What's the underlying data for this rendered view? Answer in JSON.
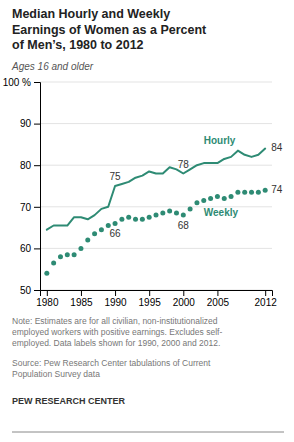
{
  "chart_data": {
    "type": "line",
    "title": "Median Hourly and Weekly\nEarnings of Women as a Percent\nof Men’s, 1980 to 2012",
    "subtitle": "Ages 16 and older",
    "note": "Note: Estimates are for all civilian, non-institutionalized\nemployed workers with positive earnings. Excludes self-\nemployed. Data labels shown for 1990, 2000 and 2012.",
    "source": "Source: Pew Research Center tabulations of Current\nPopulation Survey data",
    "credit": "PEW RESEARCH CENTER",
    "x": [
      1980,
      1981,
      1982,
      1983,
      1984,
      1985,
      1986,
      1987,
      1988,
      1989,
      1990,
      1991,
      1992,
      1993,
      1994,
      1995,
      1996,
      1997,
      1998,
      1999,
      2000,
      2001,
      2002,
      2003,
      2004,
      2005,
      2006,
      2007,
      2008,
      2009,
      2010,
      2011,
      2012
    ],
    "series": [
      {
        "name": "Hourly",
        "color": "#2e8b74",
        "line_style": "solid",
        "marker": "none",
        "values": [
          64.5,
          65.5,
          65.5,
          65.5,
          67.5,
          67.5,
          67.0,
          68.0,
          69.5,
          70.0,
          75.0,
          75.5,
          76.0,
          77.0,
          77.5,
          78.5,
          78.0,
          78.0,
          79.5,
          79.0,
          78.0,
          79.0,
          80.0,
          80.5,
          80.5,
          80.5,
          81.5,
          82.0,
          83.5,
          82.5,
          82.0,
          82.5,
          84.0
        ],
        "value_labels": [
          null,
          null,
          null,
          null,
          null,
          null,
          null,
          null,
          null,
          null,
          "75",
          null,
          null,
          null,
          null,
          null,
          null,
          null,
          null,
          null,
          "78",
          null,
          null,
          null,
          null,
          null,
          null,
          null,
          null,
          null,
          null,
          null,
          "84"
        ]
      },
      {
        "name": "Weekly",
        "color": "#2e8b74",
        "line_style": "none",
        "marker": "circle",
        "values": [
          54.0,
          56.5,
          58.0,
          58.5,
          58.5,
          60.0,
          62.0,
          63.5,
          64.5,
          65.5,
          66.0,
          67.0,
          67.5,
          67.0,
          67.0,
          67.5,
          68.0,
          68.5,
          69.0,
          68.5,
          68.0,
          69.5,
          71.0,
          71.5,
          72.0,
          72.5,
          72.0,
          72.5,
          73.5,
          73.5,
          73.5,
          73.5,
          74.0
        ],
        "value_labels": [
          null,
          null,
          null,
          null,
          null,
          null,
          null,
          null,
          null,
          null,
          "66",
          null,
          null,
          null,
          null,
          null,
          null,
          null,
          null,
          null,
          "68",
          null,
          null,
          null,
          null,
          null,
          null,
          null,
          null,
          null,
          null,
          null,
          "74"
        ]
      }
    ],
    "xlim": [
      1979,
      2013
    ],
    "ylim": [
      50,
      100
    ],
    "xticks": [
      1980,
      1985,
      1990,
      1995,
      2000,
      2005,
      2012
    ],
    "yticks": [
      50,
      60,
      70,
      80,
      90,
      {
        "value": 100,
        "label": "100 %"
      }
    ],
    "grid": true
  }
}
